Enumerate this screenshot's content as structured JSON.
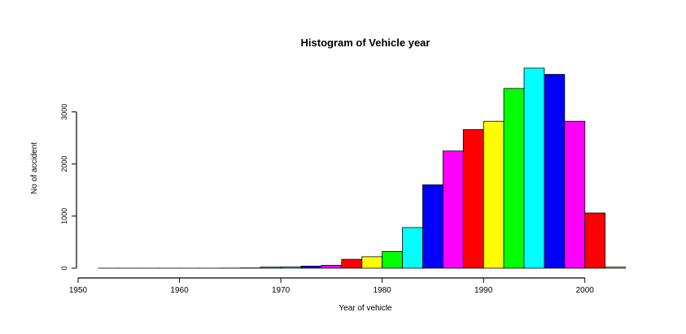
{
  "chart_data": {
    "type": "bar",
    "title": "Histogram of Vehicle year",
    "xlabel": "Year of vehicle",
    "ylabel": "No of accident",
    "xlim": [
      1950,
      2005
    ],
    "ylim": [
      0,
      3900
    ],
    "x_ticks": [
      "1950",
      "1960",
      "1970",
      "1980",
      "1990",
      "2000"
    ],
    "y_ticks": [
      "0",
      "1000",
      "2000",
      "3000"
    ],
    "grid": false,
    "legend": "none",
    "bins": [
      {
        "start": 1952,
        "end": 1954,
        "value": 0,
        "color": "#ffff00"
      },
      {
        "start": 1954,
        "end": 1956,
        "value": 0,
        "color": "#00ff00"
      },
      {
        "start": 1956,
        "end": 1958,
        "value": 0,
        "color": "#00ffff"
      },
      {
        "start": 1958,
        "end": 1960,
        "value": 0,
        "color": "#0000ff"
      },
      {
        "start": 1960,
        "end": 1962,
        "value": 0,
        "color": "#ff00ff"
      },
      {
        "start": 1962,
        "end": 1964,
        "value": 0,
        "color": "#ff0000"
      },
      {
        "start": 1964,
        "end": 1966,
        "value": 2,
        "color": "#ff0000"
      },
      {
        "start": 1966,
        "end": 1968,
        "value": 5,
        "color": "#ffff00"
      },
      {
        "start": 1968,
        "end": 1970,
        "value": 20,
        "color": "#00ff00"
      },
      {
        "start": 1970,
        "end": 1972,
        "value": 25,
        "color": "#00ffff"
      },
      {
        "start": 1972,
        "end": 1974,
        "value": 40,
        "color": "#0000ff"
      },
      {
        "start": 1974,
        "end": 1976,
        "value": 55,
        "color": "#ff00ff"
      },
      {
        "start": 1976,
        "end": 1978,
        "value": 170,
        "color": "#ff0000"
      },
      {
        "start": 1978,
        "end": 1980,
        "value": 220,
        "color": "#ffff00"
      },
      {
        "start": 1980,
        "end": 1982,
        "value": 320,
        "color": "#00ff00"
      },
      {
        "start": 1982,
        "end": 1984,
        "value": 780,
        "color": "#00ffff"
      },
      {
        "start": 1984,
        "end": 1986,
        "value": 1600,
        "color": "#0000ff"
      },
      {
        "start": 1986,
        "end": 1988,
        "value": 2250,
        "color": "#ff00ff"
      },
      {
        "start": 1988,
        "end": 1990,
        "value": 2660,
        "color": "#ff0000"
      },
      {
        "start": 1990,
        "end": 1992,
        "value": 2820,
        "color": "#ffff00"
      },
      {
        "start": 1992,
        "end": 1994,
        "value": 3450,
        "color": "#00ff00"
      },
      {
        "start": 1994,
        "end": 1996,
        "value": 3840,
        "color": "#00ffff"
      },
      {
        "start": 1996,
        "end": 1998,
        "value": 3720,
        "color": "#0000ff"
      },
      {
        "start": 1998,
        "end": 2000,
        "value": 2820,
        "color": "#ff00ff"
      },
      {
        "start": 2000,
        "end": 2002,
        "value": 1060,
        "color": "#ff0000"
      },
      {
        "start": 2002,
        "end": 2004,
        "value": 20,
        "color": "#ffff00"
      }
    ]
  }
}
